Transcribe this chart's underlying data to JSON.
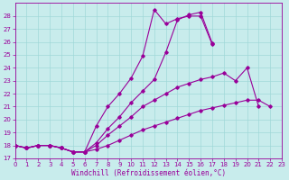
{
  "title": "",
  "xlabel": "Windchill (Refroidissement éolien,°C)",
  "xlim": [
    0,
    23
  ],
  "ylim": [
    17,
    29
  ],
  "xticks": [
    0,
    1,
    2,
    3,
    4,
    5,
    6,
    7,
    8,
    9,
    10,
    11,
    12,
    13,
    14,
    15,
    16,
    17,
    18,
    19,
    20,
    21,
    22,
    23
  ],
  "yticks": [
    17,
    18,
    19,
    20,
    21,
    22,
    23,
    24,
    25,
    26,
    27,
    28
  ],
  "background_color": "#c8ecec",
  "line_color": "#990099",
  "grid_color": "#a0d8d8",
  "series": [
    {
      "x": [
        0,
        1,
        2,
        3,
        4,
        5,
        6,
        7,
        8,
        9,
        10,
        11,
        12,
        13,
        14,
        15,
        16,
        17
      ],
      "y": [
        18.0,
        17.8,
        18.0,
        18.0,
        17.8,
        17.5,
        17.5,
        19.5,
        21.0,
        22.0,
        23.2,
        24.9,
        28.5,
        27.4,
        27.8,
        28.0,
        28.0,
        25.8
      ]
    },
    {
      "x": [
        0,
        1,
        2,
        3,
        4,
        5,
        6,
        7,
        8,
        9,
        10,
        11,
        12,
        13,
        14,
        15,
        16,
        17
      ],
      "y": [
        18.0,
        17.8,
        18.0,
        18.0,
        17.8,
        17.5,
        17.5,
        18.2,
        19.3,
        20.2,
        21.3,
        22.2,
        23.1,
        25.2,
        27.7,
        28.1,
        28.3,
        25.9
      ]
    },
    {
      "x": [
        0,
        1,
        2,
        3,
        4,
        5,
        6,
        7,
        8,
        9,
        10,
        11,
        12,
        13,
        14,
        15,
        16,
        17,
        18,
        19,
        20,
        21
      ],
      "y": [
        18.0,
        17.8,
        18.0,
        18.0,
        17.8,
        17.5,
        17.5,
        18.0,
        18.8,
        19.5,
        20.2,
        21.0,
        21.5,
        22.0,
        22.5,
        22.8,
        23.1,
        23.3,
        23.6,
        23.0,
        24.0,
        21.0
      ]
    },
    {
      "x": [
        0,
        1,
        2,
        3,
        4,
        5,
        6,
        7,
        8,
        9,
        10,
        11,
        12,
        13,
        14,
        15,
        16,
        17,
        18,
        19,
        20,
        21,
        22
      ],
      "y": [
        18.0,
        17.8,
        18.0,
        18.0,
        17.8,
        17.5,
        17.5,
        17.7,
        18.0,
        18.4,
        18.8,
        19.2,
        19.5,
        19.8,
        20.1,
        20.4,
        20.7,
        20.9,
        21.1,
        21.3,
        21.5,
        21.5,
        21.0
      ]
    }
  ]
}
